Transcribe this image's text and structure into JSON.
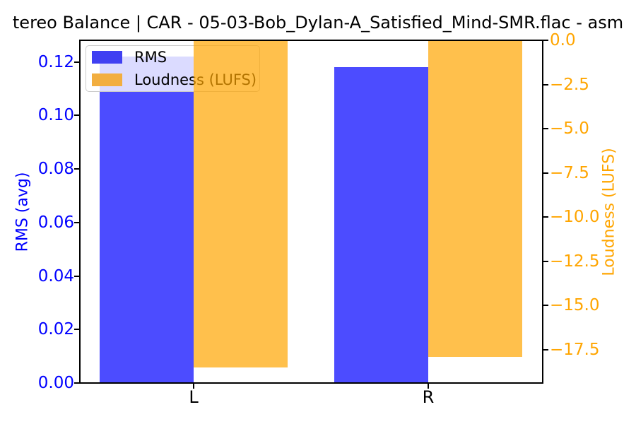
{
  "chart_data": {
    "type": "bar",
    "title": "tereo Balance | CAR - 05-03-Bob_Dylan-A_Satisfied_Mind-SMR.flac - asm",
    "categories": [
      "L",
      "R"
    ],
    "series": [
      {
        "name": "RMS",
        "axis": "left",
        "values": [
          0.122,
          0.118
        ],
        "color": "#4c4cff"
      },
      {
        "name": "Loudness (LUFS)",
        "axis": "right",
        "values": [
          -18.5,
          -17.9
        ],
        "color": "rgba(255, 165, 0, 0.7)"
      }
    ],
    "left_axis": {
      "label": "RMS (avg)",
      "color": "#0000ff",
      "ylim": [
        0,
        0.1281
      ],
      "ticks": [
        {
          "label": "0.00",
          "value": 0.0
        },
        {
          "label": "0.02",
          "value": 0.02
        },
        {
          "label": "0.04",
          "value": 0.04
        },
        {
          "label": "0.06",
          "value": 0.06
        },
        {
          "label": "0.08",
          "value": 0.08
        },
        {
          "label": "0.10",
          "value": 0.1
        },
        {
          "label": "0.12",
          "value": 0.12
        }
      ]
    },
    "right_axis": {
      "label": "Loudness (LUFS)",
      "color": "#ffa500",
      "ylim": [
        -19.4,
        0
      ],
      "ticks": [
        {
          "label": "0.0",
          "value": 0.0
        },
        {
          "label": "−2.5",
          "value": -2.5
        },
        {
          "label": "−5.0",
          "value": -5.0
        },
        {
          "label": "−7.5",
          "value": -7.5
        },
        {
          "label": "−10.0",
          "value": -10.0
        },
        {
          "label": "−12.5",
          "value": -12.5
        },
        {
          "label": "−15.0",
          "value": -15.0
        },
        {
          "label": "−17.5",
          "value": -17.5
        }
      ]
    },
    "legend": {
      "position": "upper-left",
      "entries": [
        {
          "label": "RMS",
          "swatch_color": "#4040f2"
        },
        {
          "label": "Loudness (LUFS)",
          "swatch_color": "#f2ae40"
        }
      ]
    },
    "grid": false
  }
}
